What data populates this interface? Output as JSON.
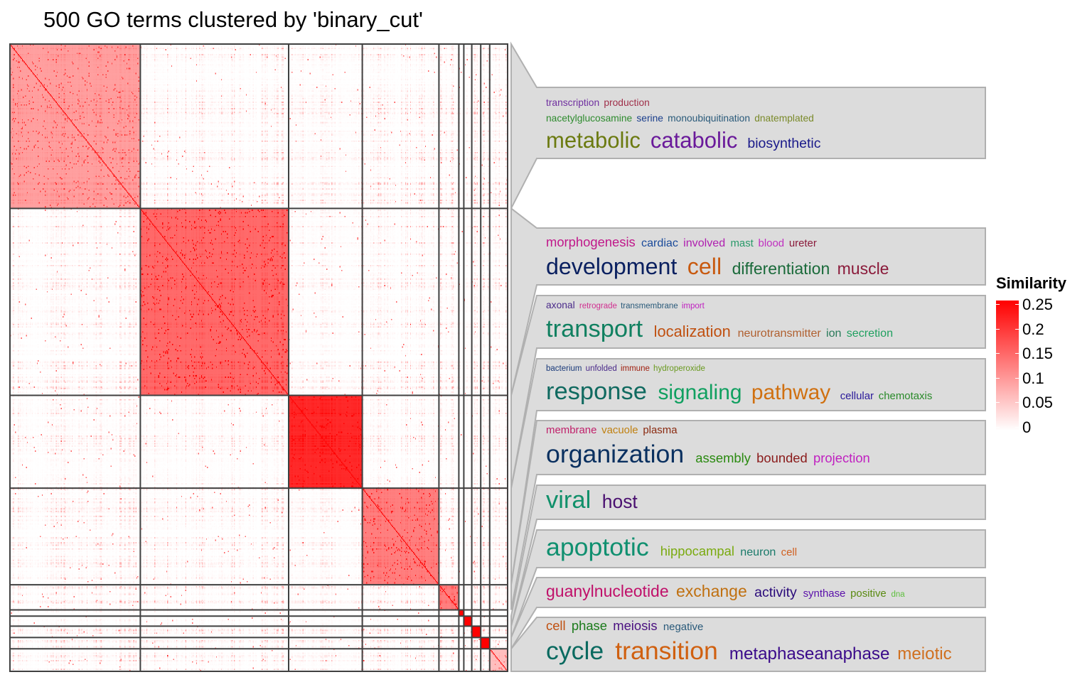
{
  "chart_data": {
    "type": "heatmap",
    "title": "500 GO terms clustered by 'binary_cut'",
    "n_terms": 500,
    "cluster_sizes": [
      131,
      149,
      74,
      77,
      20,
      5,
      8,
      9,
      9,
      18
    ],
    "within_cluster_similarity": [
      0.09,
      0.14,
      0.2,
      0.12,
      0.12,
      0.25,
      0.25,
      0.25,
      0.25,
      0.06
    ],
    "color_scale": {
      "min": 0,
      "max": 0.25,
      "low_color": "#FFFFFF",
      "high_color": "#FF0000"
    },
    "legend": {
      "title": "Similarity",
      "ticks": [
        "0.25",
        "0.2",
        "0.15",
        "0.1",
        "0.05",
        "0"
      ],
      "tick_values": [
        0.25,
        0.2,
        0.15,
        0.1,
        0.05,
        0
      ],
      "placement": "right"
    },
    "word_clouds": [
      {
        "cluster": 1,
        "lines": [
          [
            {
              "text": "transcription",
              "w": 12,
              "color": "#7030a0"
            },
            {
              "text": "production",
              "w": 12,
              "color": "#a0304a"
            }
          ],
          [
            {
              "text": "nacetylglucosamine",
              "w": 12,
              "color": "#2e8b2e"
            },
            {
              "text": "serine",
              "w": 12,
              "color": "#1a3e8c"
            },
            {
              "text": "monoubiquitination",
              "w": 12,
              "color": "#2a5a7a"
            },
            {
              "text": "dnatemplated",
              "w": 12,
              "color": "#7a8a2a"
            }
          ],
          [
            {
              "text": "metabolic",
              "w": 27,
              "color": "#6b7a10"
            },
            {
              "text": "catabolic",
              "w": 27,
              "color": "#6a1a9a"
            },
            {
              "text": "biosynthetic",
              "w": 17,
              "color": "#1a1a8a"
            }
          ]
        ]
      },
      {
        "cluster": 2,
        "lines": [
          [
            {
              "text": "morphogenesis",
              "w": 16,
              "color": "#c0188a"
            },
            {
              "text": "cardiac",
              "w": 14,
              "color": "#1a4a9a"
            },
            {
              "text": "involved",
              "w": 14,
              "color": "#b020b0"
            },
            {
              "text": "mast",
              "w": 13,
              "color": "#2a9a6a"
            },
            {
              "text": "blood",
              "w": 13,
              "color": "#c030c0"
            },
            {
              "text": "ureter",
              "w": 13,
              "color": "#8a1a3a"
            }
          ],
          [
            {
              "text": "development",
              "w": 28,
              "color": "#0a2060"
            },
            {
              "text": "cell",
              "w": 28,
              "color": "#c85a10"
            },
            {
              "text": "differentiation",
              "w": 20,
              "color": "#1a6a3a"
            },
            {
              "text": "muscle",
              "w": 20,
              "color": "#8a1a3a"
            }
          ]
        ]
      },
      {
        "cluster": 3,
        "lines": [
          [
            {
              "text": "axonal",
              "w": 12,
              "color": "#4a2a8a"
            },
            {
              "text": "retrograde",
              "w": 10,
              "color": "#d03090"
            },
            {
              "text": "transmembrane",
              "w": 10,
              "color": "#2a5a7a"
            },
            {
              "text": "import",
              "w": 10,
              "color": "#c020c0"
            }
          ],
          [
            {
              "text": "transport",
              "w": 30,
              "color": "#108060"
            },
            {
              "text": "localization",
              "w": 19,
              "color": "#c05010"
            },
            {
              "text": "neurotransmitter",
              "w": 14,
              "color": "#b06030"
            },
            {
              "text": "ion",
              "w": 14,
              "color": "#2a7a5a"
            },
            {
              "text": "secretion",
              "w": 14,
              "color": "#20a060"
            }
          ]
        ]
      },
      {
        "cluster": 4,
        "lines": [
          [
            {
              "text": "bacterium",
              "w": 10,
              "color": "#1a3a7a"
            },
            {
              "text": "unfolded",
              "w": 10,
              "color": "#4a2a8a"
            },
            {
              "text": "immune",
              "w": 10,
              "color": "#a02010"
            },
            {
              "text": "hydroperoxide",
              "w": 10,
              "color": "#6a9a20"
            }
          ],
          [
            {
              "text": "response",
              "w": 30,
              "color": "#106a60"
            },
            {
              "text": "signaling",
              "w": 26,
              "color": "#10a060"
            },
            {
              "text": "pathway",
              "w": 26,
              "color": "#d07010"
            },
            {
              "text": "cellular",
              "w": 13,
              "color": "#2a1a9a"
            },
            {
              "text": "chemotaxis",
              "w": 13,
              "color": "#2a8a2a"
            }
          ]
        ]
      },
      {
        "cluster": 5,
        "lines": [
          [
            {
              "text": "membrane",
              "w": 13,
              "color": "#c0206a"
            },
            {
              "text": "vacuole",
              "w": 13,
              "color": "#c08010"
            },
            {
              "text": "plasma",
              "w": 13,
              "color": "#8a2a10"
            }
          ],
          [
            {
              "text": "organization",
              "w": 31,
              "color": "#0a3060"
            },
            {
              "text": "assembly",
              "w": 16,
              "color": "#2a8a10"
            },
            {
              "text": "bounded",
              "w": 16,
              "color": "#8a1a1a"
            },
            {
              "text": "projection",
              "w": 16,
              "color": "#c020c0"
            }
          ]
        ]
      },
      {
        "cluster": 6,
        "lines": [
          [
            {
              "text": "viral",
              "w": 30,
              "color": "#10906a"
            },
            {
              "text": "host",
              "w": 23,
              "color": "#4a1070"
            }
          ]
        ]
      },
      {
        "cluster": 7,
        "lines": [
          [
            {
              "text": "apoptotic",
              "w": 31,
              "color": "#109070"
            },
            {
              "text": "hippocampal",
              "w": 16,
              "color": "#7aaa10"
            },
            {
              "text": "neuron",
              "w": 14,
              "color": "#1a7a6a"
            },
            {
              "text": "cell",
              "w": 13,
              "color": "#d06020"
            }
          ]
        ]
      },
      {
        "cluster": 8,
        "lines": [
          [
            {
              "text": "guanylnucleotide",
              "w": 20,
              "color": "#c0106a"
            },
            {
              "text": "exchange",
              "w": 20,
              "color": "#c07010"
            },
            {
              "text": "activity",
              "w": 17,
              "color": "#2a0a7a"
            },
            {
              "text": "synthase",
              "w": 13,
              "color": "#5a10aa"
            },
            {
              "text": "positive",
              "w": 13,
              "color": "#5a8a10"
            },
            {
              "text": "dna",
              "w": 10,
              "color": "#60c040"
            }
          ]
        ]
      },
      {
        "cluster": 9,
        "lines": [
          [
            {
              "text": "cell",
              "w": 16,
              "color": "#c05010"
            },
            {
              "text": "phase",
              "w": 16,
              "color": "#1a7a1a"
            },
            {
              "text": "meiosis",
              "w": 16,
              "color": "#4a1080"
            },
            {
              "text": "negative",
              "w": 13,
              "color": "#2a5a7a"
            }
          ],
          [
            {
              "text": "cycle",
              "w": 31,
              "color": "#0a6a60"
            },
            {
              "text": "transition",
              "w": 31,
              "color": "#d06010"
            },
            {
              "text": "metaphaseanaphase",
              "w": 21,
              "color": "#3a0a8a"
            },
            {
              "text": "meiotic",
              "w": 21,
              "color": "#d07020"
            }
          ]
        ]
      }
    ]
  }
}
